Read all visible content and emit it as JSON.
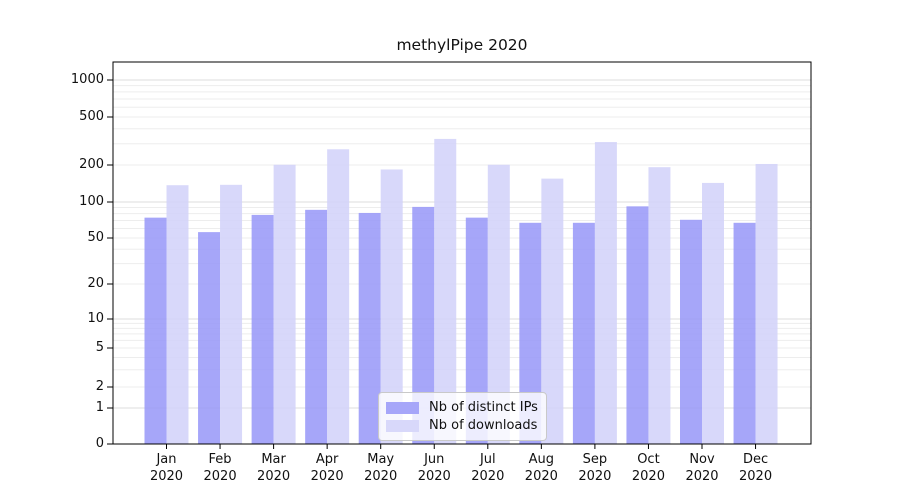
{
  "chart_data": {
    "type": "bar",
    "title": "methylPipe 2020",
    "categories": [
      "Jan",
      "Feb",
      "Mar",
      "Apr",
      "May",
      "Jun",
      "Jul",
      "Aug",
      "Sep",
      "Oct",
      "Nov",
      "Dec"
    ],
    "x_year": "2020",
    "series": [
      {
        "name": "Nb of distinct IPs",
        "color": "#9696f8",
        "legend_color": "#a6a6f9",
        "values": [
          74,
          56,
          78,
          86,
          81,
          91,
          74,
          67,
          67,
          92,
          71,
          67
        ]
      },
      {
        "name": "Nb of downloads",
        "color": "#d1d1f9",
        "legend_color": "#d8d8fa",
        "values": [
          137,
          138,
          201,
          270,
          184,
          329,
          201,
          155,
          310,
          192,
          143,
          204
        ]
      }
    ],
    "y_ticks": [
      0,
      1,
      2,
      5,
      10,
      20,
      50,
      100,
      200,
      500,
      1000
    ],
    "y_scale": "log-like",
    "ylim": [
      0,
      1400
    ],
    "grid": true,
    "legend_position": "bottom-center-inside",
    "background_color": "#ffffff",
    "major_grid_color": "#dcdcdc",
    "minor_grid_color": "#ededed"
  }
}
